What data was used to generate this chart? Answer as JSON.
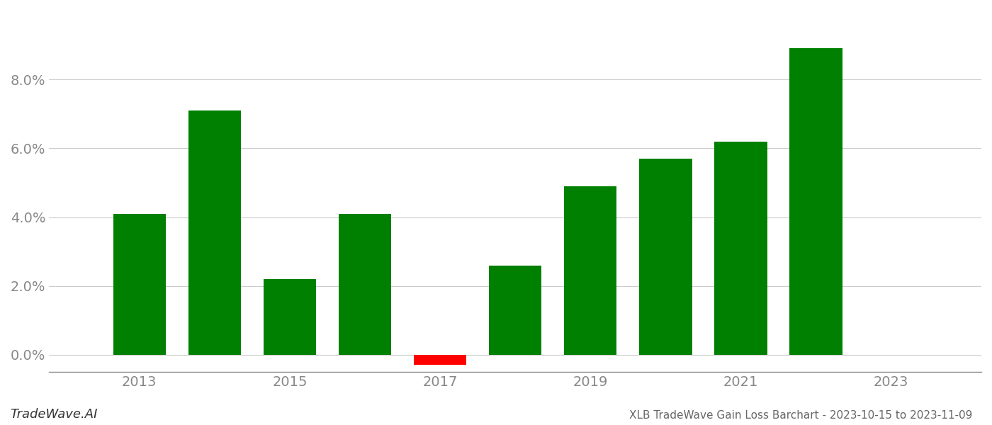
{
  "years": [
    2013,
    2014,
    2015,
    2016,
    2017,
    2018,
    2019,
    2020,
    2021,
    2022
  ],
  "values": [
    0.041,
    0.071,
    0.022,
    0.041,
    -0.003,
    0.026,
    0.049,
    0.057,
    0.062,
    0.089
  ],
  "bar_colors": [
    "#008000",
    "#008000",
    "#008000",
    "#008000",
    "#ff0000",
    "#008000",
    "#008000",
    "#008000",
    "#008000",
    "#008000"
  ],
  "title": "XLB TradeWave Gain Loss Barchart - 2023-10-15 to 2023-11-09",
  "footer_left": "TradeWave.AI",
  "background_color": "#ffffff",
  "grid_color": "#cccccc",
  "axis_color": "#888888",
  "ylim": [
    -0.005,
    0.1
  ],
  "yticks": [
    0.0,
    0.02,
    0.04,
    0.06,
    0.08
  ],
  "xtick_years": [
    2013,
    2015,
    2017,
    2019,
    2021,
    2023
  ],
  "xlim_left": 2011.8,
  "xlim_right": 2024.2,
  "bar_width": 0.7,
  "tick_labelsize": 14,
  "title_fontsize": 11,
  "footer_fontsize": 13
}
